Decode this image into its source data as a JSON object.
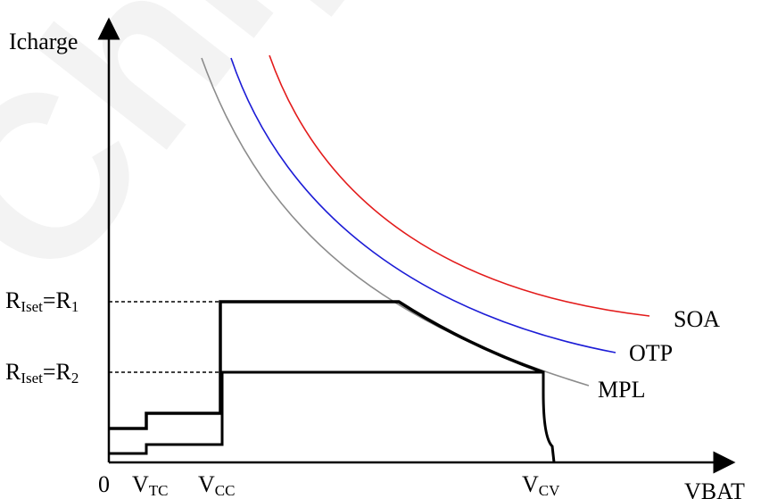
{
  "axes": {
    "y_label": "Icharge",
    "x_label": "VBAT",
    "origin": "0"
  },
  "x_ticks": {
    "vtc": {
      "main": "V",
      "sub": "TC"
    },
    "vcc": {
      "main": "V",
      "sub": "CC"
    },
    "vcv": {
      "main": "V",
      "sub": "CV"
    }
  },
  "y_ticks": {
    "r1": {
      "a": "R",
      "a_sub": "Iset",
      "eq": "=R",
      "b_sub": "1"
    },
    "r2": {
      "a": "R",
      "a_sub": "Iset",
      "eq": "=R",
      "b_sub": "2"
    }
  },
  "curves": {
    "soa": {
      "label": "SOA",
      "color": "#e31b1b"
    },
    "otp": {
      "label": "OTP",
      "color": "#1c1cd6"
    },
    "mpl": {
      "label": "MPL",
      "color": "#8c8c8c"
    }
  },
  "watermark": "Chip"
}
